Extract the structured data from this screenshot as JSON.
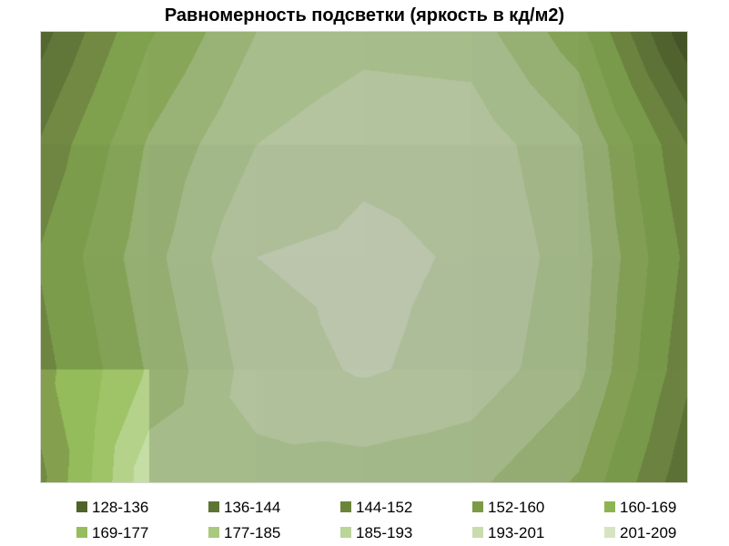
{
  "page": {
    "background": "#ffffff"
  },
  "chart_data": {
    "type": "heatmap",
    "subtype": "contour-surface-top-view",
    "title": "Равномерность подсветки (яркость в кд/м2)",
    "value_unit": "кд/м2",
    "legend_position": "bottom",
    "grid_on": false,
    "bands": [
      {
        "label": "128-136",
        "color": "#4f632a"
      },
      {
        "label": "136-144",
        "color": "#5d7433"
      },
      {
        "label": "144-152",
        "color": "#6b863b"
      },
      {
        "label": "152-160",
        "color": "#7d9a46"
      },
      {
        "label": "160-169",
        "color": "#8cb551"
      },
      {
        "label": "169-177",
        "color": "#97bc5e"
      },
      {
        "label": "177-185",
        "color": "#aac97f"
      },
      {
        "label": "185-193",
        "color": "#bad499"
      },
      {
        "label": "193-201",
        "color": "#c8dcae"
      },
      {
        "label": "201-209",
        "color": "#d6e4c4"
      }
    ],
    "band_thresholds": [
      128,
      136,
      144,
      152,
      160,
      169,
      177,
      185,
      193,
      201,
      209
    ],
    "legend_rows": [
      [
        0,
        1,
        2,
        3,
        4
      ],
      [
        5,
        6,
        7,
        8,
        9
      ]
    ],
    "grid_values": [
      [
        141,
        168,
        185,
        190,
        189,
        172,
        130
      ],
      [
        153,
        178,
        193,
        199,
        198,
        186,
        152
      ],
      [
        161,
        182,
        201,
        203,
        200,
        189,
        158
      ],
      [
        157,
        178,
        197,
        202,
        198,
        187,
        154
      ],
      [
        150,
        191,
        190,
        189,
        187,
        176,
        146
      ]
    ],
    "value_range_shown": [
      128,
      209
    ],
    "render_hints": {
      "desaturation": 0.92,
      "cell_shade": [
        [
          0.91,
          0.9,
          0.9,
          0.895,
          0.885,
          0.87
        ],
        [
          0.885,
          0.875,
          0.872,
          0.87,
          0.865,
          0.858
        ],
        [
          0.878,
          0.872,
          0.87,
          0.868,
          0.862,
          0.855
        ],
        [
          1.06,
          0.89,
          0.88,
          0.878,
          0.87,
          0.862
        ]
      ],
      "plot_border_color": "#d6d6d0"
    }
  }
}
